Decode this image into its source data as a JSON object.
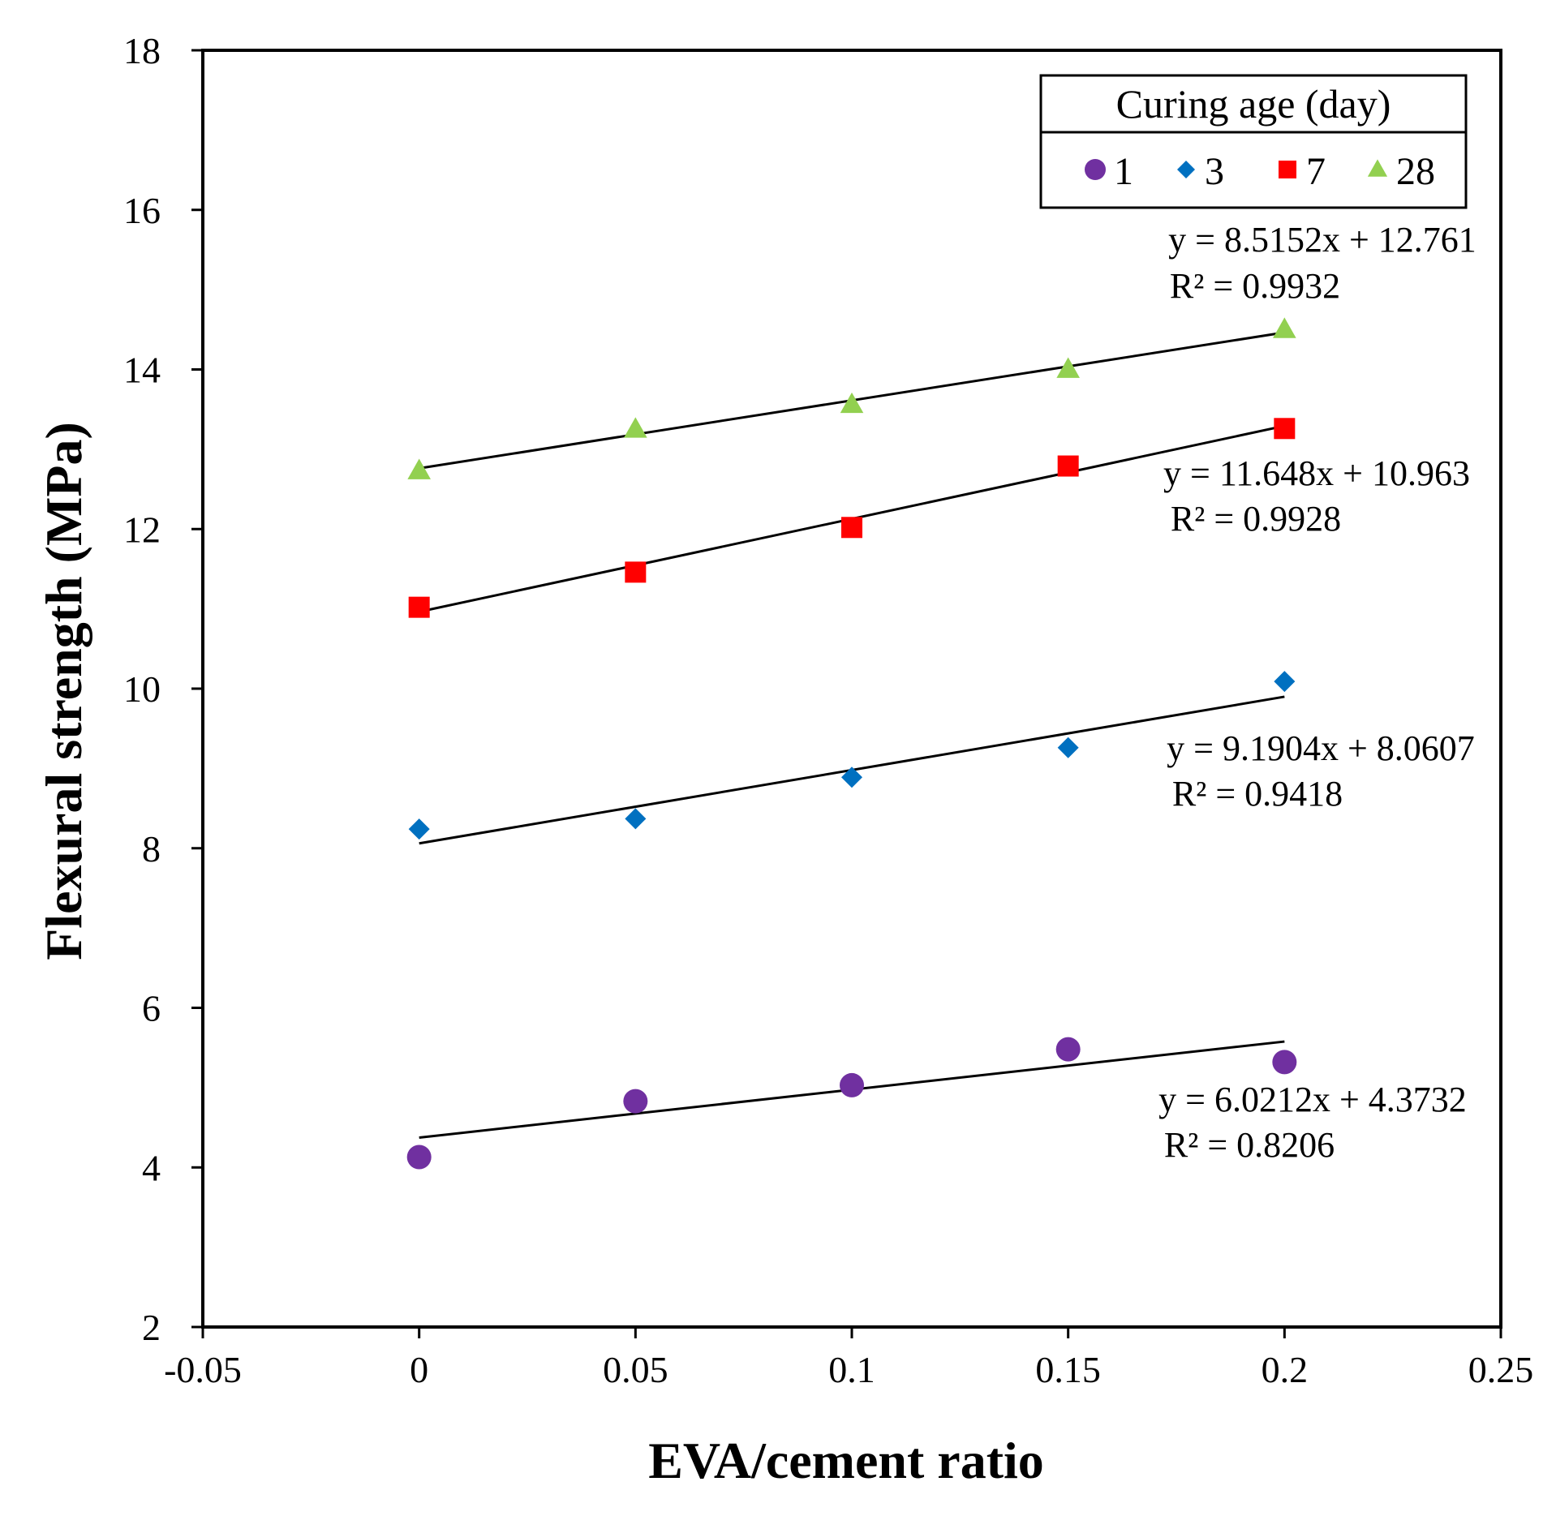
{
  "chart_data": {
    "type": "scatter",
    "xlabel": "EVA/cement ratio",
    "ylabel": "Flexural strength (MPa)",
    "xlim": [
      -0.05,
      0.25
    ],
    "ylim": [
      2,
      18
    ],
    "xticks": [
      -0.05,
      0,
      0.05,
      0.1,
      0.15,
      0.2,
      0.25
    ],
    "xtick_labels": [
      "-0.05",
      "0",
      "0.05",
      "0.1",
      "0.15",
      "0.2",
      "0.25"
    ],
    "yticks": [
      2,
      4,
      6,
      8,
      10,
      12,
      14,
      16,
      18
    ],
    "ytick_labels": [
      "2",
      "4",
      "6",
      "8",
      "10",
      "12",
      "14",
      "16",
      "18"
    ],
    "grid": false,
    "legend": {
      "title": "Curing age (day)",
      "placement": "top-right"
    },
    "series": [
      {
        "name": "1",
        "marker": "circle",
        "color": "#7030A0",
        "x": [
          0,
          0.05,
          0.1,
          0.15,
          0.2
        ],
        "y": [
          4.13,
          4.83,
          5.03,
          5.48,
          5.32
        ],
        "trendline": {
          "slope": 6.0212,
          "intercept": 4.3732
        },
        "equation": "y = 6.0212x + 4.3732",
        "r2": "R² = 0.8206"
      },
      {
        "name": "3",
        "marker": "diamond",
        "color": "#0070C0",
        "x": [
          0,
          0.05,
          0.1,
          0.15,
          0.2
        ],
        "y": [
          8.24,
          8.37,
          8.89,
          9.26,
          10.09
        ],
        "trendline": {
          "slope": 9.1904,
          "intercept": 8.0607
        },
        "equation": "y = 9.1904x + 8.0607",
        "r2": "R² = 0.9418"
      },
      {
        "name": "7",
        "marker": "square",
        "color": "#FF0000",
        "x": [
          0,
          0.05,
          0.1,
          0.15,
          0.2
        ],
        "y": [
          11.02,
          11.46,
          12.02,
          12.79,
          13.26
        ],
        "trendline": {
          "slope": 11.648,
          "intercept": 10.963
        },
        "equation": "y = 11.648x + 10.963",
        "r2": "R² = 0.9928"
      },
      {
        "name": "28",
        "marker": "triangle",
        "color": "#92D050",
        "x": [
          0,
          0.05,
          0.1,
          0.15,
          0.2
        ],
        "y": [
          12.73,
          13.25,
          13.56,
          14.0,
          14.5
        ],
        "trendline": {
          "slope": 8.5152,
          "intercept": 12.761
        },
        "equation": "y = 8.5152x + 12.761",
        "r2": "R² = 0.9932"
      }
    ]
  }
}
